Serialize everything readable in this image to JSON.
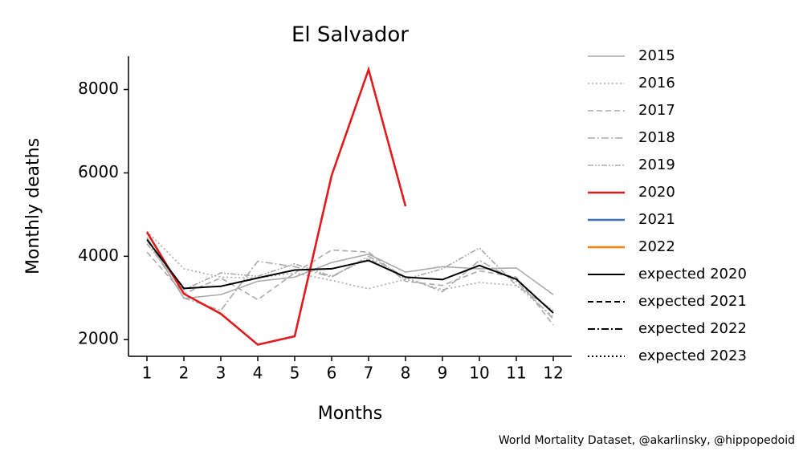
{
  "chart_data": {
    "type": "line",
    "title": "El Salvador",
    "xlabel": "Months",
    "ylabel": "Monthly deaths",
    "source": "World Mortality Dataset, @akarlinsky, @hippopedoid",
    "x": [
      1,
      2,
      3,
      4,
      5,
      6,
      7,
      8,
      9,
      10,
      11,
      12
    ],
    "xlim": [
      0.5,
      12.5
    ],
    "xticks": [
      1,
      2,
      3,
      4,
      5,
      6,
      7,
      8,
      9,
      10,
      11,
      12
    ],
    "ylim": [
      1600,
      8800
    ],
    "yticks": [
      2000,
      4000,
      6000,
      8000
    ],
    "grid": false,
    "legend": "right",
    "series": [
      {
        "name": "2015",
        "color": "#aaaaaa",
        "linestyle": "solid",
        "values": [
          4450,
          2990,
          3080,
          3400,
          3500,
          3850,
          4050,
          3620,
          3750,
          3700,
          3720,
          3080
        ]
      },
      {
        "name": "2016",
        "color": "#aaaaaa",
        "linestyle": "dotted",
        "values": [
          4600,
          3700,
          3500,
          3480,
          3600,
          3420,
          3220,
          3450,
          3200,
          3370,
          3300,
          2550
        ]
      },
      {
        "name": "2017",
        "color": "#aaaaaa",
        "linestyle": "dashed",
        "values": [
          4100,
          3100,
          3480,
          2960,
          3600,
          4150,
          4100,
          3400,
          3300,
          3650,
          3500,
          2350
        ]
      },
      {
        "name": "2018",
        "color": "#aaaaaa",
        "linestyle": "dashdot",
        "values": [
          4400,
          3000,
          2700,
          3880,
          3750,
          3500,
          4000,
          3500,
          3150,
          3900,
          3400,
          2500
        ]
      },
      {
        "name": "2019",
        "color": "#aaaaaa",
        "linestyle": "dashdotdot",
        "values": [
          4300,
          3200,
          3600,
          3520,
          3820,
          3520,
          3950,
          3450,
          3700,
          4200,
          3300,
          2700
        ]
      },
      {
        "name": "2020",
        "color": "#e31a1c",
        "linestyle": "solid",
        "values": [
          4580,
          3100,
          2620,
          1880,
          2080,
          5940,
          8480,
          5200,
          null,
          null,
          null,
          null
        ]
      },
      {
        "name": "2021",
        "color": "#3a6fb0",
        "linestyle": "solid",
        "values": [
          null,
          null,
          null,
          null,
          null,
          null,
          null,
          null,
          null,
          null,
          null,
          null
        ]
      },
      {
        "name": "2022",
        "color": "#ff7f0e",
        "linestyle": "solid",
        "values": [
          null,
          null,
          null,
          null,
          null,
          null,
          null,
          null,
          null,
          null,
          null,
          null
        ]
      },
      {
        "name": "expected 2020",
        "color": "#000000",
        "linestyle": "solid",
        "values": [
          4400,
          3230,
          3280,
          3480,
          3670,
          3700,
          3900,
          3500,
          3440,
          3780,
          3450,
          2640
        ]
      },
      {
        "name": "expected 2021",
        "color": "#000000",
        "linestyle": "dashed",
        "values": [
          null,
          null,
          null,
          null,
          null,
          null,
          null,
          null,
          null,
          null,
          null,
          null
        ]
      },
      {
        "name": "expected 2022",
        "color": "#000000",
        "linestyle": "dashdot",
        "values": [
          null,
          null,
          null,
          null,
          null,
          null,
          null,
          null,
          null,
          null,
          null,
          null
        ]
      },
      {
        "name": "expected 2023",
        "color": "#000000",
        "linestyle": "dotted",
        "values": [
          null,
          null,
          null,
          null,
          null,
          null,
          null,
          null,
          null,
          null,
          null,
          null
        ]
      }
    ]
  }
}
